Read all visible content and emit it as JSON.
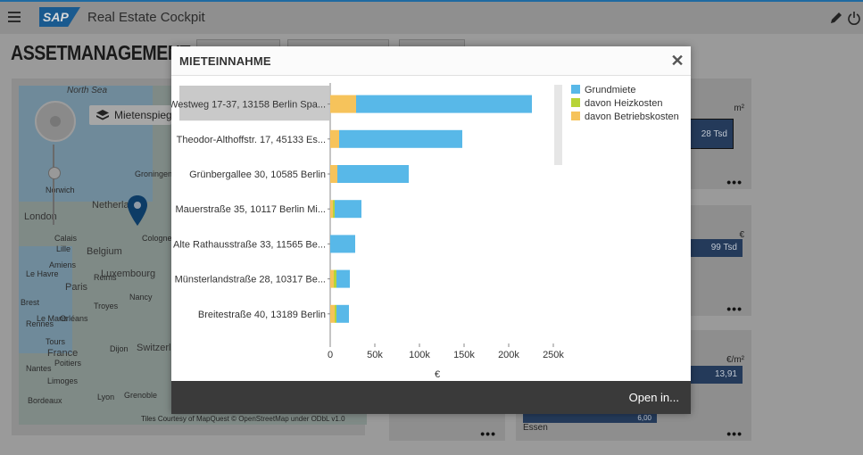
{
  "shell": {
    "title": "Real Estate Cockpit",
    "logo": "SAP",
    "menu_icon": "hamburger-icon",
    "edit_icon": "pencil-icon",
    "logout_icon": "power-icon"
  },
  "page": {
    "title": "ASSETMANAGEMENT"
  },
  "map": {
    "layer_button": "Mietenspiegel",
    "attribution": "Tiles Courtesy of MapQuest © OpenStreetMap under ODbL v1.0",
    "labels": [
      "North Sea",
      "London",
      "Netherlands",
      "Belgium",
      "Luxembourg",
      "Paris",
      "France",
      "Switzerland",
      "Groningen",
      "Norwich",
      "Cologne",
      "Nancy",
      "Dijon",
      "Lyon",
      "Le Mans",
      "Tours",
      "Brest",
      "Rennes",
      "Nantes",
      "Bordeaux",
      "Limoges",
      "Grenoble",
      "Reims",
      "Lille",
      "Le Havre",
      "Amiens",
      "Calais",
      "Troyes",
      "Orléans",
      "Poitiers"
    ]
  },
  "tiles": [
    {
      "unit": "m²",
      "value": "28 Tsd"
    },
    {
      "unit": "€",
      "value": "99 Tsd"
    },
    {
      "unit": "€/m²",
      "value": "13,91",
      "city": "Essen",
      "bottom_value": "6,00"
    }
  ],
  "dialog": {
    "title": "MIETEINNAHME",
    "close_icon": "close-icon",
    "footer_action": "Open in..."
  },
  "colors": {
    "grundmiete": "#58b8e8",
    "heizkosten": "#b7d437",
    "betriebskosten": "#f6c35b",
    "selected_row": "#c9c9c9"
  },
  "chart_data": {
    "type": "bar",
    "orientation": "horizontal",
    "stacked": true,
    "categories": [
      "Westweg 17-37, 13158 Berlin Spa...",
      "Theodor-Althoffstr. 17, 45133 Es...",
      "Grünbergallee 30, 10585 Berlin",
      "Mauerstraße 35, 10117 Berlin Mi...",
      "Alte Rathausstraße 33, 11565 Be...",
      "Münsterlandstraße 28, 10317 Be...",
      "Breitestraße 40, 13189 Berlin"
    ],
    "series": [
      {
        "name": "davon Betriebskosten",
        "values": [
          29000,
          10000,
          8000,
          3000,
          0,
          4000,
          5000
        ]
      },
      {
        "name": "davon Heizkosten",
        "values": [
          0,
          0,
          0,
          2000,
          0,
          3000,
          2000
        ]
      },
      {
        "name": "Grundmiete",
        "values": [
          197000,
          138000,
          80000,
          30000,
          28000,
          15000,
          14000
        ]
      }
    ],
    "xticks": [
      "0",
      "50k",
      "100k",
      "150k",
      "200k",
      "250k"
    ],
    "xlim": [
      0,
      250000
    ],
    "xlabel": "€",
    "selected_category": 0,
    "legend": [
      "Grundmiete",
      "davon Heizkosten",
      "davon Betriebskosten"
    ],
    "legend_position": "right"
  }
}
